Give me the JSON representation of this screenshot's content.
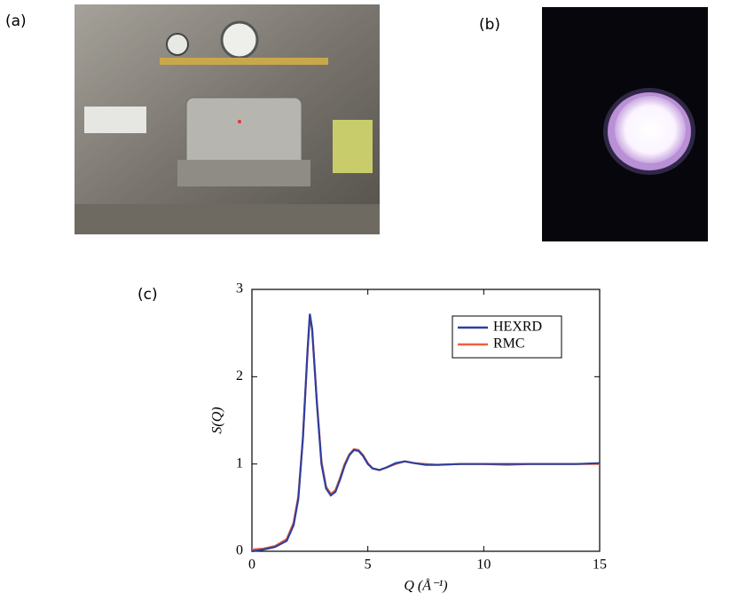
{
  "panel_labels": [
    "(a)",
    "(b)",
    "(c)"
  ],
  "chart_data": {
    "type": "line",
    "x_label": "Q (Å⁻¹)",
    "y_label": "S(Q)",
    "x": [
      0,
      0.5,
      1,
      1.5,
      1.8,
      2,
      2.2,
      2.4,
      2.5,
      2.6,
      2.8,
      3,
      3.2,
      3.4,
      3.6,
      3.8,
      4,
      4.2,
      4.4,
      4.6,
      4.8,
      5,
      5.2,
      5.5,
      5.8,
      6.2,
      6.6,
      7,
      7.5,
      8,
      9,
      10,
      11,
      12,
      13,
      14,
      15
    ],
    "series": [
      {
        "name": "HEXRD",
        "color": "#2e3f9e",
        "values": [
          0,
          0.02,
          0.05,
          0.12,
          0.3,
          0.6,
          1.3,
          2.3,
          2.72,
          2.55,
          1.7,
          1.0,
          0.72,
          0.64,
          0.68,
          0.82,
          0.98,
          1.1,
          1.16,
          1.15,
          1.09,
          1.0,
          0.95,
          0.93,
          0.96,
          1.01,
          1.03,
          1.01,
          0.99,
          0.99,
          1.0,
          1.0,
          1.0,
          1.0,
          1.0,
          1.0,
          1.01
        ]
      },
      {
        "name": "RMC",
        "color": "#f0603f",
        "values": [
          0.02,
          0.03,
          0.06,
          0.14,
          0.33,
          0.63,
          1.3,
          2.28,
          2.7,
          2.53,
          1.72,
          1.03,
          0.74,
          0.66,
          0.7,
          0.84,
          1.0,
          1.11,
          1.17,
          1.16,
          1.1,
          1.01,
          0.95,
          0.93,
          0.96,
          1.0,
          1.03,
          1.01,
          1.0,
          0.99,
          1.0,
          1.0,
          0.99,
          1.0,
          1.0,
          1.0,
          1.0
        ]
      }
    ],
    "xlim": [
      0,
      15
    ],
    "ylim": [
      0,
      3
    ],
    "xticks": [
      0,
      5,
      10,
      15
    ],
    "yticks": [
      0,
      1,
      2,
      3
    ],
    "legend": "upper right"
  }
}
